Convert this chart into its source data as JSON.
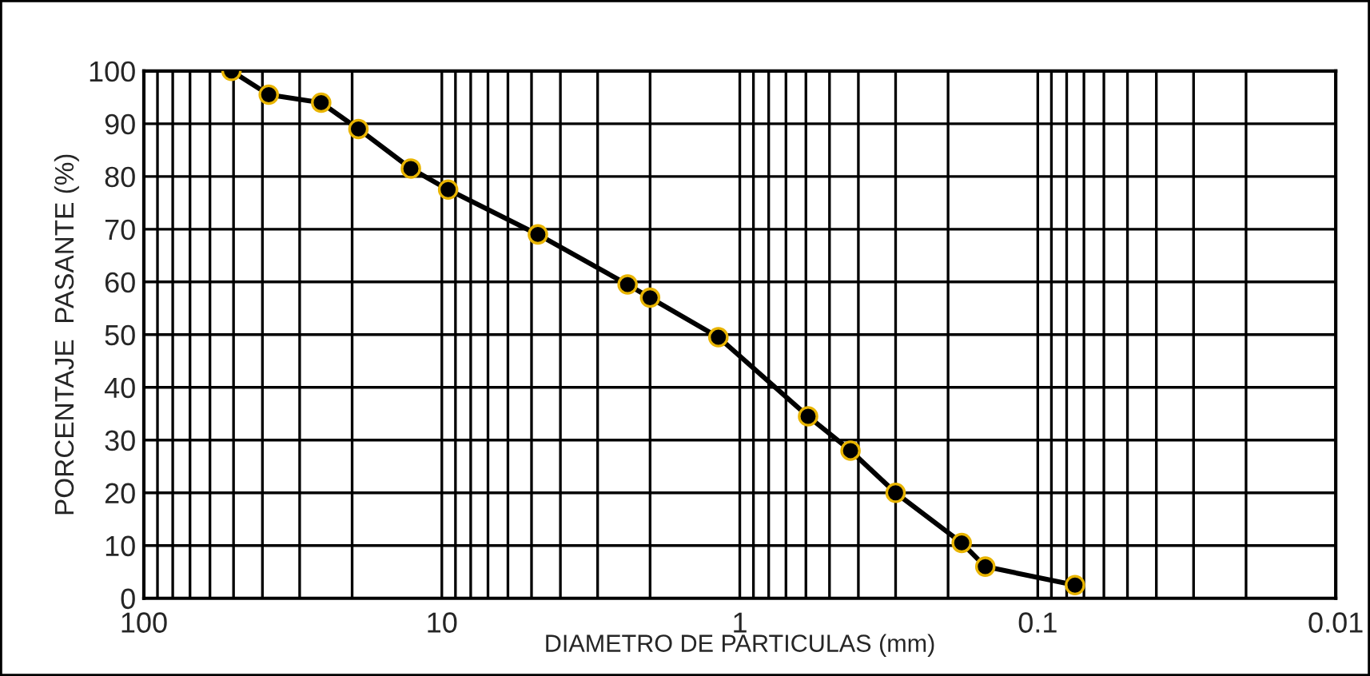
{
  "chart_data": {
    "type": "line",
    "xlabel": "DIAMETRO DE PARTICULAS (mm)",
    "ylabel": "PORCENTAJE  PASANTE (%)",
    "log": "x",
    "xlim": [
      100,
      0.01
    ],
    "xticks": [
      {
        "value": 100,
        "label": "100"
      },
      {
        "value": 10,
        "label": "10"
      },
      {
        "value": 1,
        "label": "1"
      },
      {
        "value": 0.1,
        "label": "0.1"
      },
      {
        "value": 0.01,
        "label": "0.01"
      }
    ],
    "ylim": [
      0,
      100
    ],
    "yticks": [
      0,
      10,
      20,
      30,
      40,
      50,
      60,
      70,
      80,
      90,
      100
    ],
    "grid": true,
    "marker": "circle",
    "line_style": "solid",
    "legend": false,
    "series": [
      {
        "color": "#000000",
        "x": [
          50.8,
          38.1,
          25.4,
          19.05,
          12.7,
          9.525,
          4.76,
          2.38,
          2.0,
          1.18,
          0.59,
          0.425,
          0.3,
          0.18,
          0.15,
          0.075
        ],
        "values": [
          100,
          95.5,
          94,
          89,
          81.5,
          77.5,
          69,
          59.5,
          57,
          49.5,
          34.5,
          28,
          20,
          10.5,
          6,
          2.5
        ]
      }
    ]
  }
}
